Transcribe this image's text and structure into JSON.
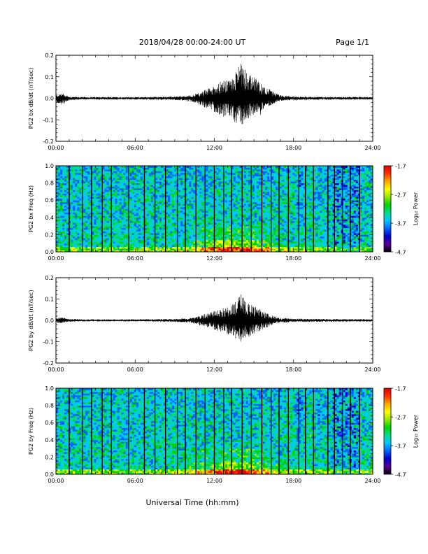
{
  "header": {
    "title": "2018/04/28  00:00-24:00 UT",
    "page": "Page 1/1"
  },
  "footer": {
    "xlabel": "Universal Time (hh:mm)"
  },
  "colors": {
    "waveform": "#000000",
    "axis": "#000000",
    "colormap": [
      "#000000",
      "#5a0096",
      "#0000c8",
      "#0064ff",
      "#00c8ff",
      "#00dc8c",
      "#00d200",
      "#96e600",
      "#ffff00",
      "#ffaa00",
      "#ff3200",
      "#dc0000"
    ]
  },
  "chart_data": [
    {
      "id": "bx-wave",
      "type": "line",
      "title": "",
      "ylabel": "PG2 bx dB/dt (nT/sec)",
      "xlabel": "",
      "xlim": [
        0,
        24
      ],
      "ylim": [
        -0.2,
        0.2
      ],
      "yticks": [
        -0.2,
        -0.1,
        0.0,
        0.1,
        0.2
      ],
      "ytick_labels": [
        "-0.2",
        "-0.1",
        "0.0",
        "0.1",
        "0.2"
      ],
      "xticks": [
        0,
        6,
        12,
        18,
        24
      ],
      "xtick_labels": [
        "00:00",
        "06:00",
        "12:00",
        "18:00",
        "24:00"
      ],
      "envelope": {
        "x": [
          0,
          0.5,
          1,
          2,
          4,
          6,
          8,
          9,
          10,
          10.5,
          11,
          11.5,
          12,
          12.5,
          13,
          13.5,
          14,
          14.5,
          15,
          15.5,
          16,
          16.5,
          17,
          18,
          20,
          22,
          24
        ],
        "upper": [
          0.015,
          0.025,
          0.008,
          0.006,
          0.006,
          0.006,
          0.007,
          0.008,
          0.012,
          0.018,
          0.03,
          0.045,
          0.06,
          0.08,
          0.085,
          0.1,
          0.2,
          0.12,
          0.1,
          0.07,
          0.05,
          0.03,
          0.015,
          0.008,
          0.007,
          0.007,
          0.006
        ],
        "lower": [
          -0.02,
          -0.03,
          -0.01,
          -0.006,
          -0.006,
          -0.006,
          -0.007,
          -0.008,
          -0.012,
          -0.02,
          -0.035,
          -0.05,
          -0.065,
          -0.085,
          -0.09,
          -0.11,
          -0.13,
          -0.1,
          -0.08,
          -0.06,
          -0.04,
          -0.025,
          -0.012,
          -0.008,
          -0.007,
          -0.007,
          -0.006
        ]
      }
    },
    {
      "id": "bx-spec",
      "type": "heatmap",
      "title": "",
      "ylabel": "PG2 bx Freq (Hz)",
      "xlabel": "",
      "xlim": [
        0,
        24
      ],
      "ylim": [
        0.0,
        1.0
      ],
      "yticks": [
        0.0,
        0.2,
        0.4,
        0.6,
        0.8,
        1.0
      ],
      "ytick_labels": [
        "0.0",
        "0.2",
        "0.4",
        "0.6",
        "0.8",
        "1.0"
      ],
      "xticks": [
        0,
        6,
        12,
        18,
        24
      ],
      "xtick_labels": [
        "00:00",
        "06:00",
        "12:00",
        "18:00",
        "24:00"
      ],
      "colorbar": {
        "label": "Log₁₀ Power",
        "range": [
          -4.7,
          -1.7
        ],
        "ticks": [
          -1.7,
          -2.7,
          -3.7,
          -4.7
        ],
        "tick_labels": [
          "-1.7",
          "-2.7",
          "-3.7",
          "-4.7"
        ]
      },
      "gap_times": [
        1.0,
        2.0,
        2.7,
        3.5,
        4.2,
        5.5,
        6.7,
        7.5,
        8.3,
        9.2,
        9.8,
        10.6,
        11.3,
        12.0,
        12.7,
        13.3,
        14.1,
        14.8,
        15.6,
        16.3,
        16.9,
        17.6,
        18.4,
        18.9,
        19.5,
        20.6,
        21.1,
        21.7,
        22.3,
        23.0
      ]
    },
    {
      "id": "by-wave",
      "type": "line",
      "title": "",
      "ylabel": "PG2 by dB/dt (nT/sec)",
      "xlabel": "",
      "xlim": [
        0,
        24
      ],
      "ylim": [
        -0.2,
        0.2
      ],
      "yticks": [
        -0.2,
        -0.1,
        0.0,
        0.1,
        0.2
      ],
      "ytick_labels": [
        "-0.2",
        "-0.1",
        "0.0",
        "0.1",
        "0.2"
      ],
      "xticks": [
        0,
        6,
        12,
        18,
        24
      ],
      "xtick_labels": [
        "00:00",
        "06:00",
        "12:00",
        "18:00",
        "24:00"
      ],
      "envelope": {
        "x": [
          0,
          0.5,
          1,
          2,
          4,
          6,
          8,
          9,
          10,
          10.5,
          11,
          11.5,
          12,
          12.5,
          13,
          13.5,
          14,
          14.5,
          15,
          15.5,
          16,
          16.5,
          17,
          18,
          20,
          22,
          24
        ],
        "upper": [
          0.012,
          0.015,
          0.007,
          0.005,
          0.005,
          0.005,
          0.006,
          0.007,
          0.01,
          0.015,
          0.025,
          0.035,
          0.045,
          0.055,
          0.065,
          0.08,
          0.14,
          0.08,
          0.07,
          0.05,
          0.035,
          0.02,
          0.012,
          0.008,
          0.007,
          0.006,
          0.006
        ],
        "lower": [
          -0.012,
          -0.015,
          -0.007,
          -0.005,
          -0.005,
          -0.005,
          -0.006,
          -0.007,
          -0.01,
          -0.015,
          -0.025,
          -0.035,
          -0.045,
          -0.055,
          -0.065,
          -0.08,
          -0.1,
          -0.08,
          -0.07,
          -0.05,
          -0.035,
          -0.02,
          -0.012,
          -0.008,
          -0.007,
          -0.006,
          -0.006
        ]
      }
    },
    {
      "id": "by-spec",
      "type": "heatmap",
      "title": "",
      "ylabel": "PG2 by Freq (Hz)",
      "xlabel": "",
      "xlim": [
        0,
        24
      ],
      "ylim": [
        0.0,
        1.0
      ],
      "yticks": [
        0.0,
        0.2,
        0.4,
        0.6,
        0.8,
        1.0
      ],
      "ytick_labels": [
        "0.0",
        "0.2",
        "0.4",
        "0.6",
        "0.8",
        "1.0"
      ],
      "xticks": [
        0,
        6,
        12,
        18,
        24
      ],
      "xtick_labels": [
        "00:00",
        "06:00",
        "12:00",
        "18:00",
        "24:00"
      ],
      "colorbar": {
        "label": "Log₁₀ Power",
        "range": [
          -4.7,
          -1.7
        ],
        "ticks": [
          -1.7,
          -2.7,
          -3.7,
          -4.7
        ],
        "tick_labels": [
          "-1.7",
          "-2.7",
          "-3.7",
          "-4.7"
        ]
      },
      "gap_times": [
        1.0,
        2.0,
        2.7,
        3.5,
        4.2,
        5.5,
        6.7,
        7.5,
        8.3,
        9.2,
        9.8,
        10.6,
        11.3,
        12.0,
        12.7,
        13.3,
        14.1,
        14.8,
        15.6,
        16.3,
        16.9,
        17.6,
        18.4,
        18.9,
        19.5,
        20.6,
        21.1,
        21.7,
        22.3,
        23.0
      ]
    }
  ]
}
